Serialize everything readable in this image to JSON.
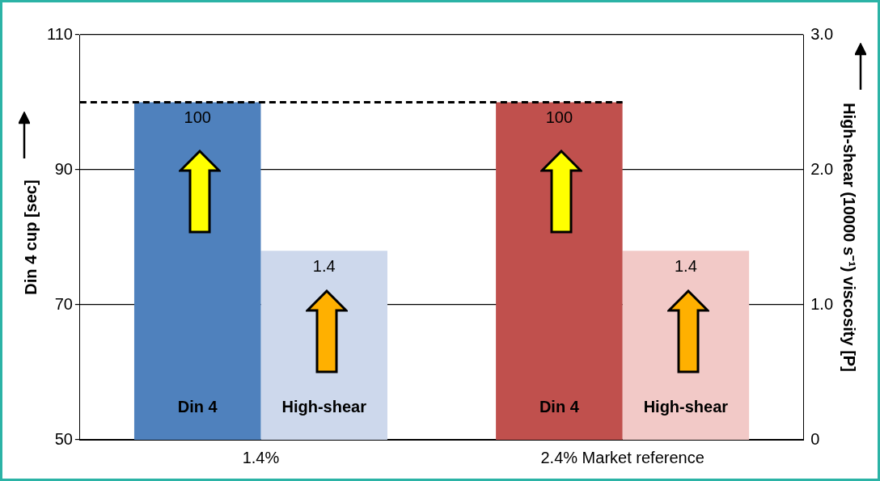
{
  "chart_data": {
    "type": "bar",
    "categories": [
      "1.4%",
      "2.4% Market reference"
    ],
    "series": [
      {
        "name": "Din 4",
        "colors": [
          "#4f81bd",
          "#c0504d"
        ],
        "values": [
          100,
          100
        ]
      },
      {
        "name": "High-shear",
        "axis": "y2",
        "colors": [
          "#cdd8ec",
          "#f2c9c7"
        ],
        "values": [
          1.4,
          1.4
        ]
      }
    ],
    "ylabel": "Din 4 cup [sec]",
    "y2label": "High-shear (10000 s⁻¹) viscosity [P]",
    "ylim": [
      50,
      110
    ],
    "yticks": [
      50,
      70,
      90,
      110
    ],
    "y2lim": [
      0,
      3
    ],
    "y2ticks": [
      {
        "value": 0,
        "label": "0"
      },
      {
        "value": 1,
        "label": "1.0"
      },
      {
        "value": 2,
        "label": "2.0"
      },
      {
        "value": 3,
        "label": "3.0"
      }
    ],
    "grid": "y",
    "data_labels": true,
    "ref_lines": [
      {
        "axis": "y",
        "value": 100,
        "color": "#000000",
        "line_style": "dashed"
      }
    ]
  }
}
